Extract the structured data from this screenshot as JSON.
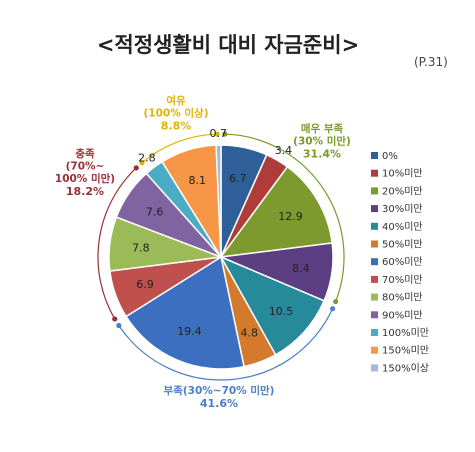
{
  "title": "<적정생활비 대비 자금준비>",
  "page_ref": "(P.31)",
  "chart_data": {
    "type": "pie",
    "title": "<적정생활비 대비 자금준비>",
    "slices": [
      {
        "label": "0%",
        "value": 6.7,
        "color": "#2f5f98"
      },
      {
        "label": "10%미만",
        "value": 3.4,
        "color": "#b03c3a"
      },
      {
        "label": "20%미만",
        "value": 12.9,
        "color": "#7c9a2d"
      },
      {
        "label": "30%미만",
        "value": 8.4,
        "color": "#5c3f82"
      },
      {
        "label": "40%미만",
        "value": 10.5,
        "color": "#278a9b"
      },
      {
        "label": "50%미만",
        "value": 4.8,
        "color": "#d47a2c"
      },
      {
        "label": "60%미만",
        "value": 19.4,
        "color": "#3d6fc0"
      },
      {
        "label": "70%미만",
        "value": 6.9,
        "color": "#c0504d"
      },
      {
        "label": "80%미만",
        "value": 7.8,
        "color": "#9bbb59"
      },
      {
        "label": "90%미만",
        "value": 7.6,
        "color": "#8064a2"
      },
      {
        "label": "100%미만",
        "value": 2.8,
        "color": "#4bacc6"
      },
      {
        "label": "150%미만",
        "value": 8.1,
        "color": "#f79646"
      },
      {
        "label": "150%이상",
        "value": 0.7,
        "color": "#a6b8d8"
      }
    ],
    "groups": [
      {
        "lines": [
          "매우 부족",
          "(30% 미만)"
        ],
        "pct": "31.4%",
        "color": "#7a9a2a"
      },
      {
        "lines": [
          "부족(30%~70% 미만)"
        ],
        "pct": "41.6%",
        "color": "#4a7ec8"
      },
      {
        "lines": [
          "충족",
          "(70%~",
          "100% 미만)"
        ],
        "pct": "18.2%",
        "color": "#9b2f35"
      },
      {
        "lines": [
          "여유",
          "(100% 이상)"
        ],
        "pct": "8.8%",
        "color": "#e0b400"
      }
    ],
    "legend_position": "right"
  }
}
